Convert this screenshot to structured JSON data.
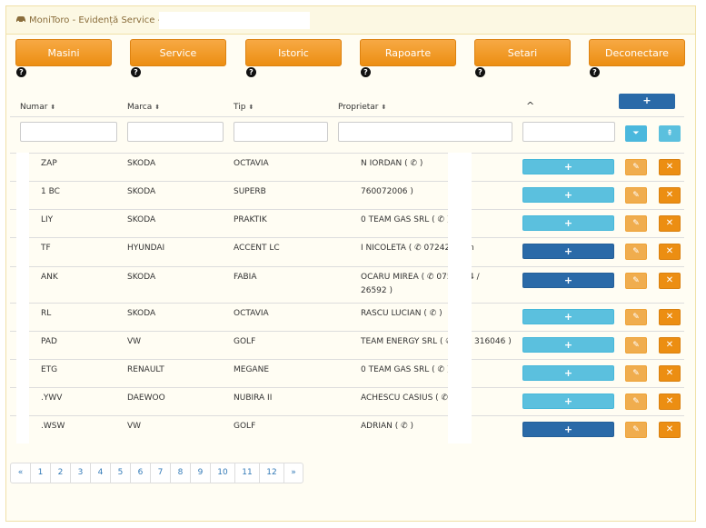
{
  "header": {
    "title": "MoniToro - Evidență Service -"
  },
  "nav": [
    {
      "label": "Masini"
    },
    {
      "label": "Service"
    },
    {
      "label": "Istoric"
    },
    {
      "label": "Rapoarte"
    },
    {
      "label": "Setari"
    },
    {
      "label": "Deconectare"
    }
  ],
  "help_symbol": "?",
  "table": {
    "headers": [
      {
        "label": "Numar",
        "sort": "⬍"
      },
      {
        "label": "Marca",
        "sort": "⬍"
      },
      {
        "label": "Tip",
        "sort": "⬍"
      },
      {
        "label": "Proprietar",
        "sort": "⬍"
      }
    ],
    "collapse_symbol": "^",
    "add_symbol": "+",
    "edit_symbol": "✎",
    "delete_symbol": "✕",
    "filter_symbol": "⏷",
    "clear_symbol": "⇞",
    "rows": [
      {
        "numar": "ZAP",
        "marca": "SKODA",
        "tip": "OCTAVIA",
        "proprietar": "N IORDAN ( ✆ )",
        "proprietar2": "",
        "dark": false
      },
      {
        "numar": "1 BC",
        "marca": "SKODA",
        "tip": "SUPERB",
        "proprietar": "760072006 )",
        "proprietar2": "",
        "dark": false
      },
      {
        "numar": "LIY",
        "marca": "SKODA",
        "tip": "PRAKTIK",
        "proprietar": "0 TEAM GAS SRL ( ✆ )",
        "proprietar2": "",
        "dark": false
      },
      {
        "numar": "TF",
        "marca": "HYUNDAI",
        "tip": "ACCENT LC",
        "proprietar": "I NICOLETA ( ✆ 072422",
        "proprietar2": "",
        "dark": true
      },
      {
        "numar": "ANK",
        "marca": "SKODA",
        "tip": "FABIA",
        "proprietar": "OCARU MIREA ( ✆ 0758",
        "proprietar2": "26592 )",
        "dark": true
      },
      {
        "numar": "RL",
        "marca": "SKODA",
        "tip": "OCTAVIA",
        "proprietar": "RASCU LUCIAN ( ✆ )",
        "proprietar2": "",
        "dark": false
      },
      {
        "numar": "PAD",
        "marca": "VW",
        "tip": "GOLF",
        "proprietar": "TEAM ENERGY SRL ( ✆",
        "proprietar2": "",
        "dark": false
      },
      {
        "numar": "ETG",
        "marca": "RENAULT",
        "tip": "MEGANE",
        "proprietar": "0 TEAM GAS SRL ( ✆ )",
        "proprietar2": "",
        "dark": false
      },
      {
        "numar": ".YWV",
        "marca": "DAEWOO",
        "tip": "NUBIRA II",
        "proprietar": "ACHESCU CASIUS ( ✆",
        "proprietar2": "",
        "dark": false
      },
      {
        "numar": ".WSW",
        "marca": "VW",
        "tip": "GOLF",
        "proprietar": "ADRIAN ( ✆ )",
        "proprietar2": "",
        "dark": true
      }
    ],
    "overflow": [
      {
        "row": 3,
        "text": "n"
      },
      {
        "row": 4,
        "text": "4 /"
      },
      {
        "row": 6,
        "text": "316046 )"
      }
    ]
  },
  "pagination": [
    "«",
    "1",
    "2",
    "3",
    "4",
    "5",
    "6",
    "7",
    "8",
    "9",
    "10",
    "11",
    "12",
    "»"
  ]
}
